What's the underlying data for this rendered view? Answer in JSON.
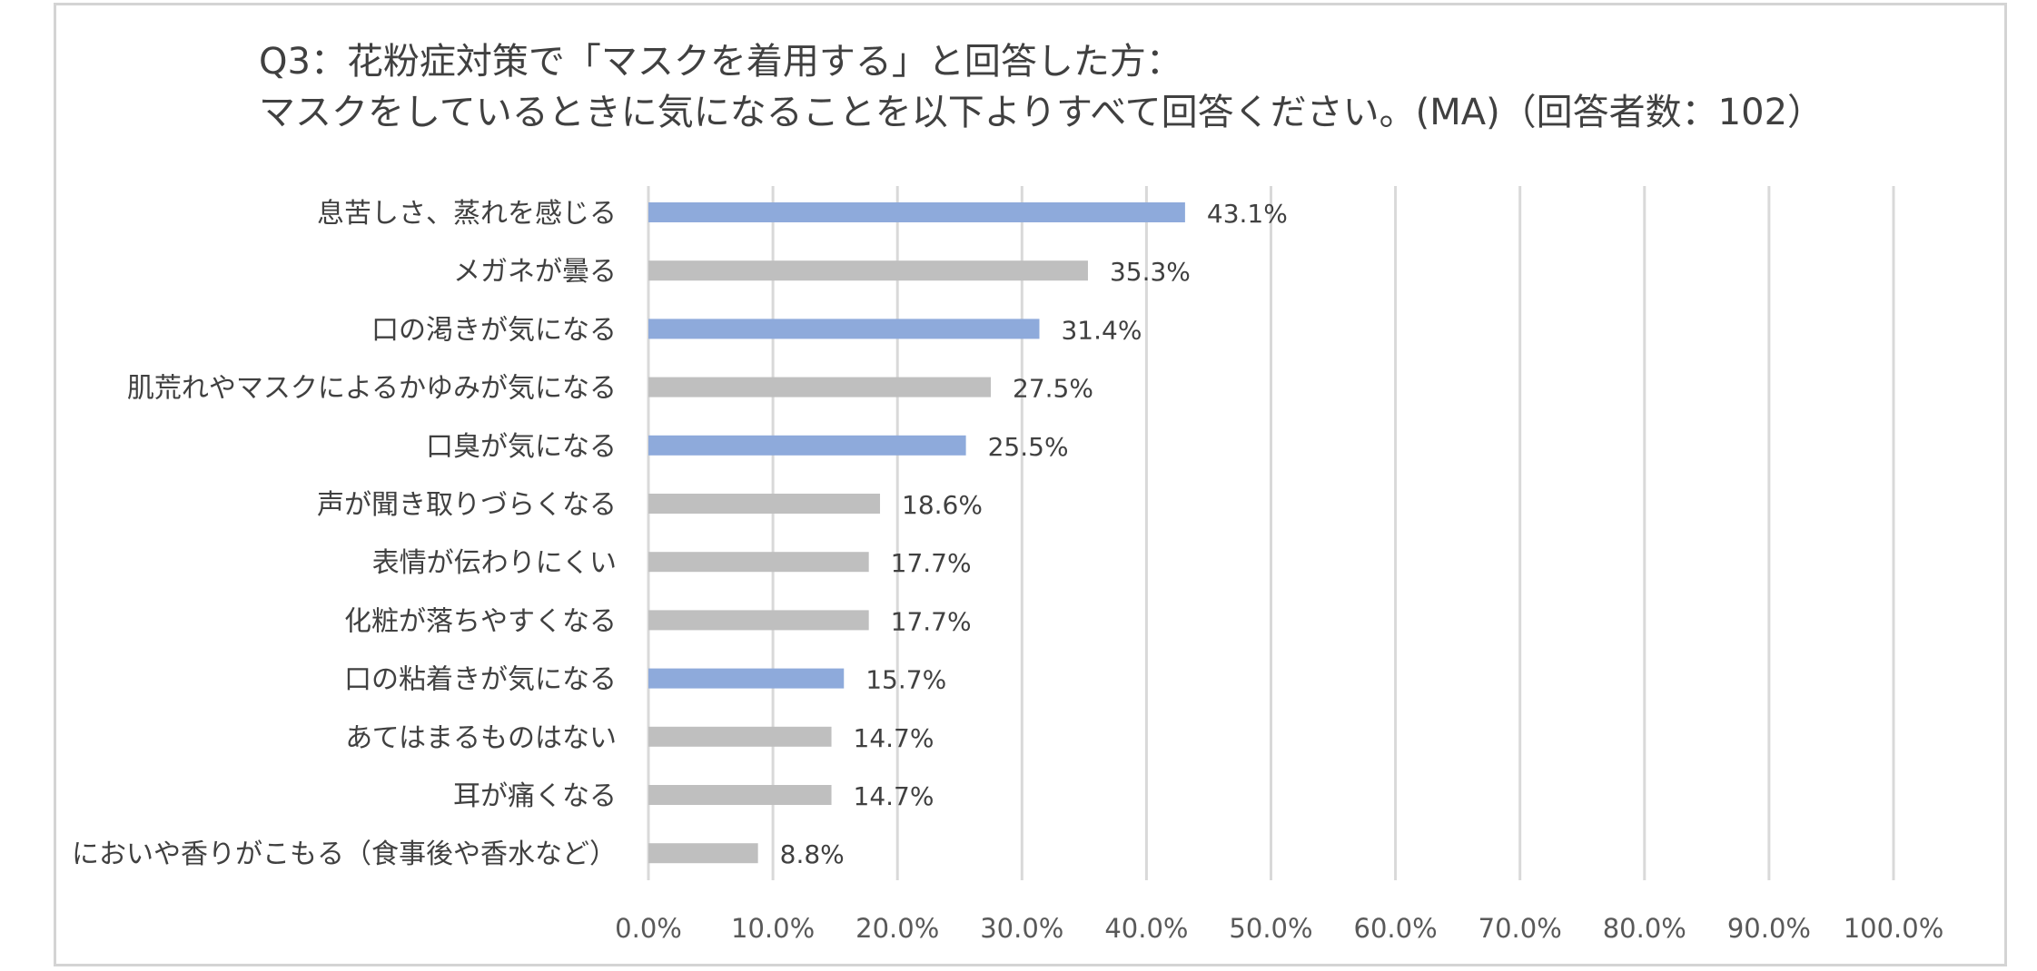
{
  "title": {
    "line1": "Q3：花粉症対策で「マスクを着用する」と回答した方：",
    "line2": "マスクをしているときに気になることを以下よりすべて回答ください。(MA)（回答者数：102）"
  },
  "chart_data": {
    "type": "bar",
    "orientation": "horizontal",
    "categories": [
      "息苦しさ、蒸れを感じる",
      "メガネが曇る",
      "口の渇きが気になる",
      "肌荒れやマスクによるかゆみが気になる",
      "口臭が気になる",
      "声が聞き取りづらくなる",
      "表情が伝わりにくい",
      "化粧が落ちやすくなる",
      "口の粘着きが気になる",
      "あてはまるものはない",
      "耳が痛くなる",
      "においや香りがこもる（食事後や香水など）"
    ],
    "values": [
      43.1,
      35.3,
      31.4,
      27.5,
      25.5,
      18.6,
      17.7,
      17.7,
      15.7,
      14.7,
      14.7,
      8.8
    ],
    "value_labels": [
      "43.1%",
      "35.3%",
      "31.4%",
      "27.5%",
      "25.5%",
      "18.6%",
      "17.7%",
      "17.7%",
      "15.7%",
      "14.7%",
      "14.7%",
      "8.8%"
    ],
    "highlighted": [
      true,
      false,
      true,
      false,
      true,
      false,
      false,
      false,
      true,
      false,
      false,
      false
    ],
    "colors": {
      "highlight": "#8eaadb",
      "default": "#bfbfbf",
      "grid": "#d9d9d9"
    },
    "xlim": [
      0,
      100
    ],
    "xticks": [
      "0.0%",
      "10.0%",
      "20.0%",
      "30.0%",
      "40.0%",
      "50.0%",
      "60.0%",
      "70.0%",
      "80.0%",
      "90.0%",
      "100.0%"
    ],
    "grid": true,
    "legend": "none"
  }
}
